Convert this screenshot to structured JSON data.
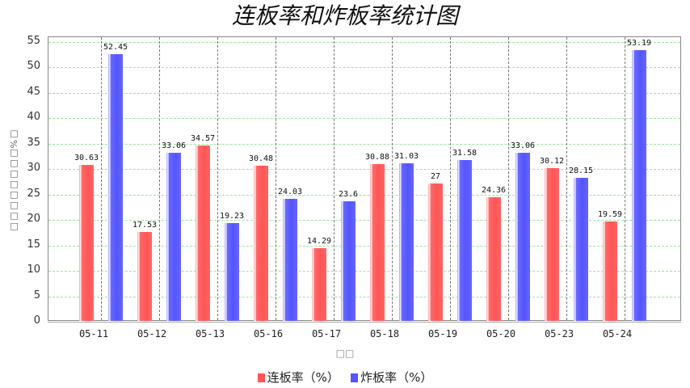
{
  "title": "连板率和炸板率统计图",
  "y_axis_label": "□□□□□□□□%□",
  "x_axis_label": "□□",
  "legend": [
    {
      "label": "连板率（%）",
      "color": "#ff5555"
    },
    {
      "label": "炸板率（%）",
      "color": "#5555ff"
    }
  ],
  "chart_data": {
    "type": "bar",
    "title": "连板率和炸板率统计图",
    "xlabel": "□□",
    "ylabel": "□□□□□□□□%□",
    "ylim": [
      0,
      55
    ],
    "yticks": [
      0,
      5,
      10,
      15,
      20,
      25,
      30,
      35,
      40,
      45,
      50,
      55
    ],
    "grid": true,
    "legend_position": "bottom",
    "categories": [
      "05-11",
      "05-12",
      "05-13",
      "05-16",
      "05-17",
      "05-18",
      "05-19",
      "05-20",
      "05-23",
      "05-24"
    ],
    "series": [
      {
        "name": "连板率（%）",
        "color": "#ff5555",
        "values": [
          30.63,
          17.53,
          34.57,
          30.48,
          14.29,
          30.88,
          27,
          24.36,
          30.12,
          19.59
        ]
      },
      {
        "name": "炸板率（%）",
        "color": "#5555ff",
        "values": [
          52.45,
          33.06,
          19.23,
          24.03,
          23.6,
          31.03,
          31.58,
          33.06,
          28.15,
          53.19
        ]
      }
    ]
  }
}
